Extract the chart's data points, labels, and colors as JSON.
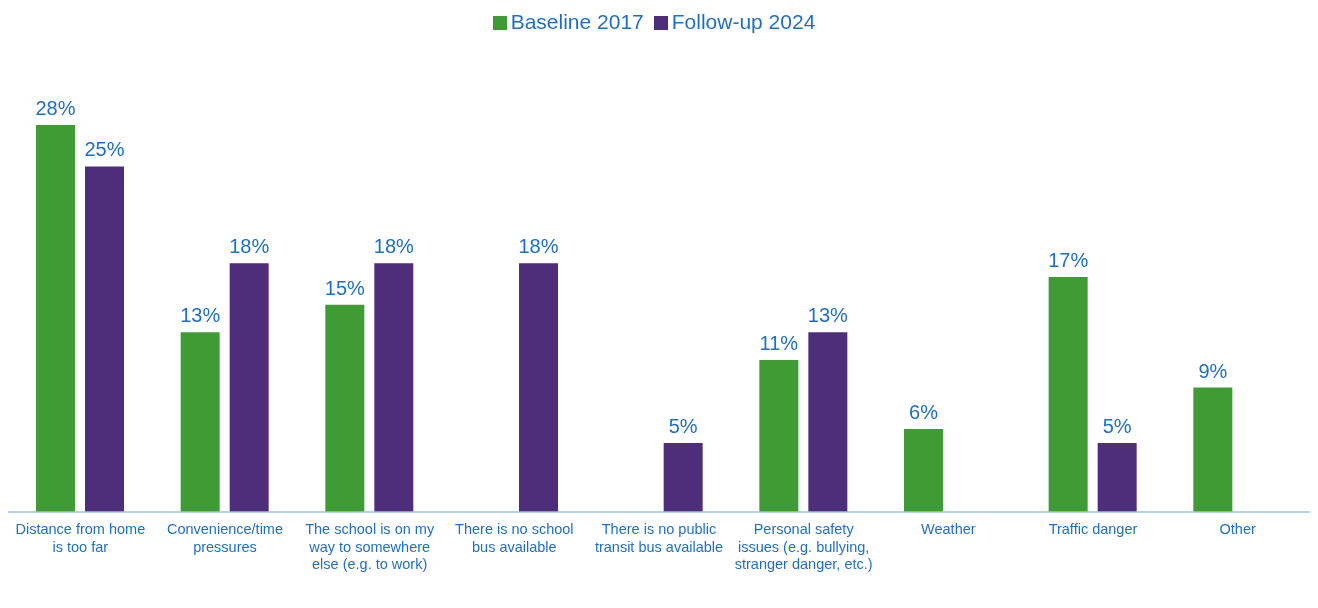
{
  "chart_data": {
    "type": "bar",
    "categories": [
      "Distance from home is too far",
      "Convenience/time pressures",
      "The school is on my way to somewhere else (e.g. to work)",
      "There is no school bus available",
      "There is no public transit bus available",
      "Personal safety issues (e.g. bullying, stranger danger, etc.)",
      "Weather",
      "Traffic danger",
      "Other"
    ],
    "series": [
      {
        "name": "Baseline 2017",
        "color": "#3f9c35",
        "values": [
          28,
          13,
          15,
          null,
          null,
          11,
          6,
          17,
          9
        ],
        "value_labels": [
          "28%",
          "13%",
          "15%",
          null,
          null,
          "11%",
          "6%",
          "17%",
          "9%"
        ]
      },
      {
        "name": "Follow-up 2024",
        "color": "#4e2d7a",
        "values": [
          25,
          18,
          18,
          18,
          5,
          13,
          null,
          5,
          null
        ],
        "value_labels": [
          "25%",
          "18%",
          "18%",
          "18%",
          "5%",
          "13%",
          null,
          "5%",
          null
        ]
      }
    ],
    "legend": "top",
    "tick_labels": "x"
  }
}
